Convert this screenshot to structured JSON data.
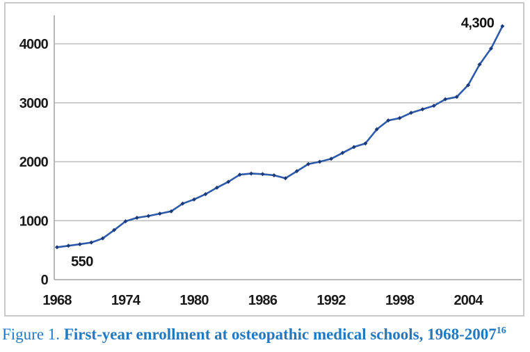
{
  "figure": {
    "caption_prefix": "Figure 1.",
    "caption_title": " First-year enrollment at osteopathic medical schools, 1968-2007",
    "caption_superscript": "16"
  },
  "colors": {
    "line": "#2d5aa9",
    "marker": "#1b3b7d",
    "grid": "#bdbdbd",
    "axis": "#b0b0b0",
    "tick_text": "#1a1a1a",
    "annotation_text": "#111111",
    "caption_text": "#2379bf",
    "chart_border": "#c9c9c9",
    "background": "#ffffff"
  },
  "chart_data": {
    "type": "line",
    "title": "",
    "xlabel": "",
    "ylabel": "",
    "series_name": "First-year enrollment at osteopathic medical schools",
    "x": [
      1968,
      1969,
      1970,
      1971,
      1972,
      1973,
      1974,
      1975,
      1976,
      1977,
      1978,
      1979,
      1980,
      1981,
      1982,
      1983,
      1984,
      1985,
      1986,
      1987,
      1988,
      1989,
      1990,
      1991,
      1992,
      1993,
      1994,
      1995,
      1996,
      1997,
      1998,
      1999,
      2000,
      2001,
      2002,
      2003,
      2004,
      2005,
      2006,
      2007
    ],
    "values": [
      550,
      575,
      600,
      630,
      700,
      840,
      990,
      1050,
      1080,
      1120,
      1160,
      1290,
      1360,
      1450,
      1560,
      1660,
      1780,
      1800,
      1790,
      1770,
      1720,
      1840,
      1960,
      2000,
      2050,
      2150,
      2250,
      2310,
      2550,
      2700,
      2740,
      2830,
      2890,
      2950,
      3060,
      3100,
      3300,
      3650,
      3920,
      4300
    ],
    "xticks": [
      1968,
      1974,
      1980,
      1986,
      1992,
      1998,
      2004
    ],
    "yticks": [
      0,
      1000,
      2000,
      3000,
      4000
    ],
    "xlim": [
      1968,
      2009
    ],
    "ylim": [
      0,
      4400
    ],
    "grid": "horizontal",
    "legend": "none",
    "marker": "diamond",
    "point_labels": [
      {
        "year": 1968,
        "text": "550",
        "position": "below-right"
      },
      {
        "year": 2007,
        "text": "4,300",
        "position": "above-left"
      }
    ]
  }
}
